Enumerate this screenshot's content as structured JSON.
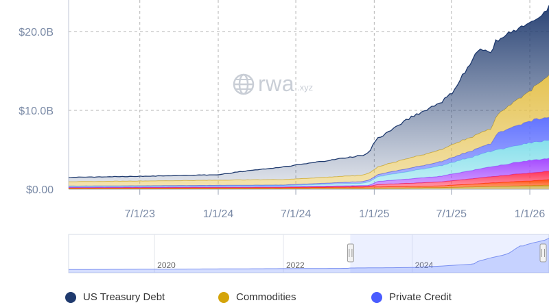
{
  "watermark": {
    "brand": "rwa",
    "suffix": ".xyz",
    "icon": "globe-icon"
  },
  "chart_data": {
    "type": "area",
    "stacked": true,
    "y_ticks": [
      "$0.00",
      "$10.0B",
      "$20.0B"
    ],
    "y_tick_values": [
      0,
      10,
      20
    ],
    "ylim": [
      0,
      24
    ],
    "x_ticks": [
      "7/1/23",
      "1/1/24",
      "7/1/24",
      "1/1/25",
      "7/1/25",
      "1/1/26"
    ],
    "x_tick_values": [
      "2023-07-01",
      "2024-01-01",
      "2024-07-01",
      "2025-01-01",
      "2025-07-01",
      "2026-01-01"
    ],
    "x_range": [
      "2023-01-15",
      "2026-02-15"
    ],
    "grid": true,
    "legend_position": "bottom",
    "navigator_ticks": [
      "2020",
      "2022",
      "2024"
    ],
    "navigator_tick_values": [
      "2020-01-01",
      "2022-01-01",
      "2024-01-01"
    ],
    "navigator_range": [
      "2018-09-01",
      "2026-02-15"
    ],
    "series": [
      {
        "name": "",
        "color": "#c9a227",
        "points": [
          [
            "2023-01-15",
            0.06
          ],
          [
            "2024-06-01",
            0.08
          ],
          [
            "2024-12-01",
            0.12
          ],
          [
            "2025-06-01",
            0.2
          ],
          [
            "2025-09-01",
            0.3
          ],
          [
            "2026-01-01",
            0.45
          ],
          [
            "2026-02-15",
            0.5
          ]
        ]
      },
      {
        "name": "",
        "color": "#ff4500",
        "points": [
          [
            "2023-01-15",
            0.08
          ],
          [
            "2024-06-01",
            0.1
          ],
          [
            "2024-12-01",
            0.14
          ],
          [
            "2025-06-01",
            0.2
          ],
          [
            "2025-10-01",
            0.45
          ],
          [
            "2026-01-01",
            0.6
          ],
          [
            "2026-02-15",
            0.7
          ]
        ]
      },
      {
        "name": "",
        "color": "#ff2a50",
        "points": [
          [
            "2023-01-15",
            0.05
          ],
          [
            "2024-06-01",
            0.06
          ],
          [
            "2024-12-20",
            0.1
          ],
          [
            "2025-01-10",
            0.3
          ],
          [
            "2025-06-01",
            0.5
          ],
          [
            "2025-10-01",
            0.8
          ],
          [
            "2026-01-01",
            1.0
          ],
          [
            "2026-02-15",
            1.1
          ]
        ]
      },
      {
        "name": "",
        "color": "#a040ff",
        "points": [
          [
            "2023-01-15",
            0.05
          ],
          [
            "2024-06-01",
            0.06
          ],
          [
            "2024-12-20",
            0.1
          ],
          [
            "2025-01-10",
            0.4
          ],
          [
            "2025-06-01",
            0.7
          ],
          [
            "2025-10-10",
            1.3
          ],
          [
            "2026-01-01",
            1.6
          ],
          [
            "2026-02-15",
            1.6
          ]
        ]
      },
      {
        "name": "",
        "color": "#80deea",
        "points": [
          [
            "2023-01-15",
            0.1
          ],
          [
            "2024-06-01",
            0.15
          ],
          [
            "2024-12-01",
            0.3
          ],
          [
            "2025-01-10",
            0.6
          ],
          [
            "2025-06-01",
            1.3
          ],
          [
            "2025-10-10",
            2.0
          ],
          [
            "2026-01-01",
            2.2
          ],
          [
            "2026-02-15",
            2.3
          ]
        ]
      },
      {
        "name": "Private Credit",
        "color": "#5a6cff",
        "points": [
          [
            "2023-01-15",
            0.05
          ],
          [
            "2024-06-01",
            0.08
          ],
          [
            "2024-12-01",
            0.2
          ],
          [
            "2025-06-01",
            0.5
          ],
          [
            "2025-10-01",
            1.0
          ],
          [
            "2025-10-20",
            2.2
          ],
          [
            "2026-01-01",
            2.8
          ],
          [
            "2026-02-15",
            3.0
          ]
        ]
      },
      {
        "name": "Commodities",
        "color": "#e4c04a",
        "points": [
          [
            "2023-01-15",
            0.55
          ],
          [
            "2023-07-01",
            0.6
          ],
          [
            "2024-01-01",
            0.65
          ],
          [
            "2024-07-01",
            0.7
          ],
          [
            "2024-12-01",
            0.8
          ],
          [
            "2025-03-01",
            1.2
          ],
          [
            "2025-07-01",
            1.6
          ],
          [
            "2025-10-01",
            1.9
          ],
          [
            "2025-10-20",
            2.4
          ],
          [
            "2026-01-01",
            3.8
          ],
          [
            "2026-02-15",
            5.4
          ]
        ]
      },
      {
        "name": "US Treasury Debt",
        "color": "#1f3a6e",
        "points": [
          [
            "2023-01-15",
            0.55
          ],
          [
            "2023-07-01",
            0.6
          ],
          [
            "2024-01-01",
            0.7
          ],
          [
            "2024-03-01",
            1.1
          ],
          [
            "2024-07-01",
            1.75
          ],
          [
            "2024-10-01",
            2.2
          ],
          [
            "2024-12-20",
            2.6
          ],
          [
            "2025-01-01",
            3.5
          ],
          [
            "2025-02-01",
            4.0
          ],
          [
            "2025-04-01",
            5.2
          ],
          [
            "2025-06-01",
            6.0
          ],
          [
            "2025-07-01",
            6.5
          ],
          [
            "2025-08-01",
            8.5
          ],
          [
            "2025-09-01",
            10.5
          ],
          [
            "2025-10-01",
            10.0
          ],
          [
            "2025-11-01",
            9.2
          ],
          [
            "2025-12-01",
            9.0
          ],
          [
            "2026-01-01",
            8.7
          ],
          [
            "2026-02-01",
            8.2
          ],
          [
            "2026-02-15",
            8.7
          ]
        ]
      }
    ],
    "legend": [
      {
        "label": "US Treasury Debt",
        "color": "#1f3a6e"
      },
      {
        "label": "Commodities",
        "color": "#d4a40a"
      },
      {
        "label": "Private Credit",
        "color": "#4a5cff"
      }
    ]
  }
}
